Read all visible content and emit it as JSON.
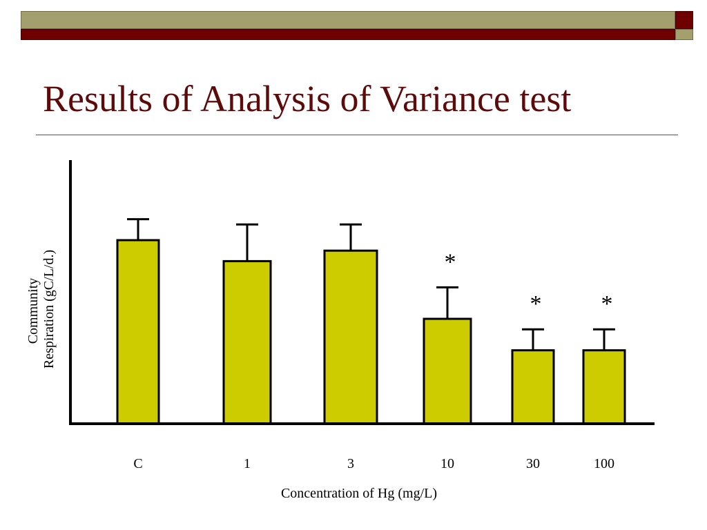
{
  "slide": {
    "title": "Results of Analysis of Variance test",
    "colors": {
      "title": "#5c0a0a",
      "band_olive": "#a4a06e",
      "band_maroon": "#6e0000"
    }
  },
  "chart_data": {
    "type": "bar",
    "xlabel": "Concentration of Hg (mg/L)",
    "ylabel_lines": [
      "Community",
      "Respiration (gC/L/d.)"
    ],
    "categories": [
      "C",
      "1",
      "3",
      "10",
      "30",
      "100"
    ],
    "values": [
      3.5,
      3.1,
      3.3,
      2.0,
      1.4,
      1.4
    ],
    "errors": [
      0.4,
      0.7,
      0.5,
      0.6,
      0.4,
      0.4
    ],
    "significance": [
      "",
      "",
      "",
      "*",
      "*",
      "*"
    ],
    "ylim": [
      0,
      5
    ],
    "y_ticks_shown": false,
    "grid": false,
    "bar_color": "#cccc00",
    "edge_color": "#000000"
  }
}
